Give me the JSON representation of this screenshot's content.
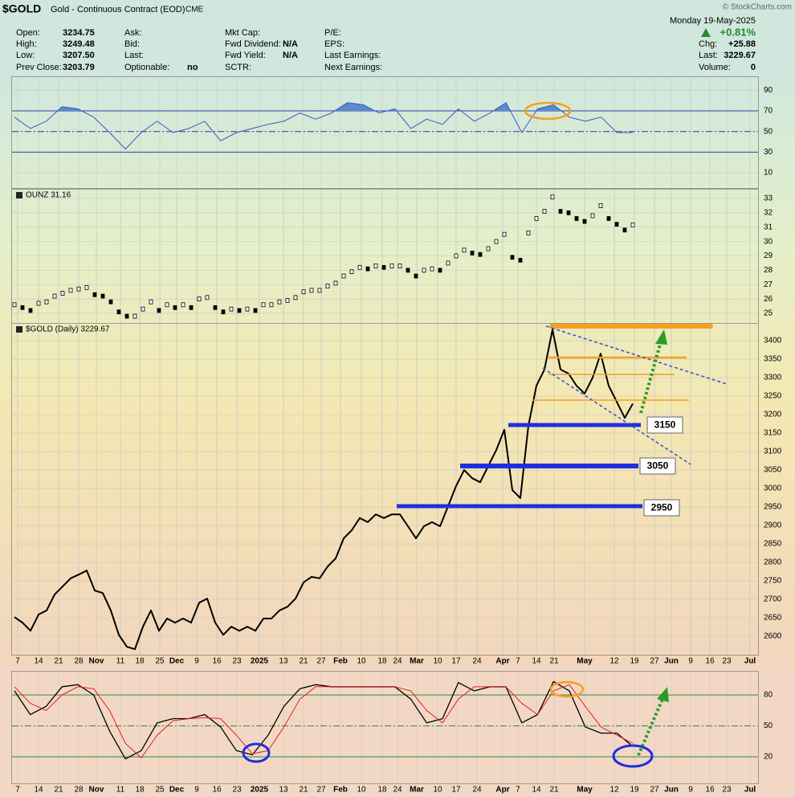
{
  "header": {
    "symbol": "$GOLD",
    "description": "Gold - Continuous Contract (EOD)",
    "exchange": "CME",
    "source": "© StockCharts.com",
    "date": "Monday 19-May-2025",
    "change_pct": "+0.81%",
    "info": [
      [
        {
          "label": "Open:",
          "value": "3234.75"
        },
        {
          "label": "High:",
          "value": "3249.48"
        },
        {
          "label": "Low:",
          "value": "3207.50"
        },
        {
          "label": "Prev Close:",
          "value": "3203.79"
        }
      ],
      [
        {
          "label": "Ask:"
        },
        {
          "label": "Bid:"
        },
        {
          "label": "Last:"
        },
        {
          "label": "Optionable:",
          "value": "no"
        }
      ],
      [
        {
          "label": "Mkt Cap:"
        },
        {
          "label": "Fwd Dividend:",
          "value": "N/A"
        },
        {
          "label": "Fwd Yield:",
          "value": "N/A"
        },
        {
          "label": "SCTR:"
        }
      ],
      [
        {
          "label": "P/E:"
        },
        {
          "label": "EPS:"
        },
        {
          "label": "Last Earnings:"
        },
        {
          "label": "Next Earnings:"
        }
      ]
    ],
    "quote": [
      {
        "label": "Chg:",
        "value": "+25.88"
      },
      {
        "label": "Last:",
        "value": "3229.67"
      },
      {
        "label": "Volume:",
        "value": "0"
      }
    ]
  },
  "xtick_labels": [
    "7",
    "14",
    "21",
    "28",
    "Nov",
    "11",
    "18",
    "25",
    "Dec",
    "9",
    "16",
    "23",
    "2025",
    "13",
    "21",
    "27",
    "Feb",
    "10",
    "18",
    "24",
    "Mar",
    "10",
    "17",
    "24",
    "Apr",
    "7",
    "14",
    "21",
    "May",
    "12",
    "19",
    "27",
    "Jun",
    "9",
    "16",
    "23",
    "Jul"
  ],
  "chart_data": [
    {
      "type": "line",
      "ylim": [
        -4,
        102
      ],
      "yticks": [
        10,
        30,
        50,
        70,
        90
      ],
      "grid": true,
      "hline_color": "#2b3fa8",
      "hlines": [
        {
          "value": 70,
          "style": "solid"
        },
        {
          "value": 30,
          "style": "solid"
        },
        {
          "value": 50,
          "style": "dashdot"
        }
      ],
      "series": [
        {
          "color": "#3a56c8",
          "fill_above": 70,
          "fill_color": "#5b8ccc",
          "values": [
            64,
            53,
            60,
            74,
            72,
            64,
            49,
            33,
            49,
            60,
            49,
            53,
            60,
            41,
            49,
            53,
            57,
            60,
            68,
            62,
            68,
            78,
            76,
            68,
            72,
            53,
            62,
            57,
            72,
            60,
            68,
            78,
            49,
            72,
            76,
            64,
            60,
            64,
            49,
            49
          ]
        }
      ]
    },
    {
      "type": "close-marks",
      "label": "OUNZ 31.16",
      "ylim": [
        24.33,
        33.67
      ],
      "yticks": [
        25,
        26,
        27,
        28,
        29,
        30,
        31,
        32,
        33
      ],
      "grid": true,
      "series": [
        {
          "color": "#000000",
          "values": [
            25.6,
            25.4,
            25.2,
            25.7,
            25.8,
            26.2,
            26.4,
            26.6,
            26.7,
            26.8,
            26.3,
            26.2,
            25.8,
            25.1,
            24.8,
            24.8,
            25.3,
            25.8,
            25.2,
            25.6,
            25.4,
            25.6,
            25.4,
            26.0,
            26.1,
            25.4,
            25.1,
            25.3,
            25.2,
            25.3,
            25.2,
            25.6,
            25.6,
            25.8,
            25.9,
            26.1,
            26.5,
            26.6,
            26.6,
            26.9,
            27.1,
            27.6,
            27.9,
            28.2,
            28.1,
            28.3,
            28.2,
            28.3,
            28.3,
            28.0,
            27.6,
            28.0,
            28.1,
            28.0,
            28.5,
            29.0,
            29.4,
            29.2,
            29.1,
            29.5,
            30.0,
            30.5,
            28.9,
            28.7,
            30.6,
            31.6,
            32.1,
            33.1,
            32.1,
            32.0,
            31.6,
            31.4,
            31.8,
            32.5,
            31.6,
            31.2,
            30.8,
            31.16
          ]
        }
      ]
    },
    {
      "type": "line",
      "label": "$GOLD (Daily) 3229.67",
      "ylim": [
        2550,
        3448
      ],
      "yticks": [
        2600,
        2650,
        2700,
        2750,
        2800,
        2850,
        2900,
        2950,
        3000,
        3050,
        3100,
        3150,
        3200,
        3250,
        3300,
        3350,
        3400
      ],
      "grid": true,
      "annotations": [
        3150,
        3050,
        2950
      ],
      "series": [
        {
          "color": "#000000",
          "width": 2,
          "values": [
            2652,
            2637,
            2615,
            2659,
            2670,
            2713,
            2735,
            2757,
            2767,
            2778,
            2724,
            2717,
            2670,
            2604,
            2572,
            2565,
            2626,
            2670,
            2615,
            2648,
            2637,
            2648,
            2637,
            2691,
            2702,
            2637,
            2604,
            2626,
            2615,
            2626,
            2615,
            2648,
            2648,
            2670,
            2680,
            2702,
            2746,
            2761,
            2757,
            2789,
            2811,
            2865,
            2887,
            2920,
            2909,
            2930,
            2920,
            2930,
            2930,
            2898,
            2865,
            2898,
            2909,
            2898,
            2952,
            3007,
            3050,
            3028,
            3017,
            3061,
            3104,
            3159,
            2996,
            2974,
            3170,
            3278,
            3322,
            3430,
            3322,
            3311,
            3278,
            3257,
            3300,
            3365,
            3278,
            3235,
            3191,
            3229.67
          ]
        }
      ]
    },
    {
      "type": "line",
      "ylim": [
        -5.7,
        103.4
      ],
      "yticks": [
        20,
        50,
        80
      ],
      "grid": true,
      "hline_color": "#2e8b3a",
      "hlines": [
        {
          "value": 80,
          "style": "solid"
        },
        {
          "value": 20,
          "style": "solid"
        },
        {
          "value": 50,
          "style": "dashdot"
        }
      ],
      "series": [
        {
          "color": "#000000",
          "width": 1.3,
          "values": [
            84,
            61,
            69,
            88,
            90,
            80,
            45,
            18,
            26,
            53,
            57,
            57,
            61,
            49,
            26,
            22,
            41,
            69,
            86,
            90,
            88,
            88,
            88,
            88,
            88,
            76,
            53,
            57,
            92,
            84,
            88,
            88,
            53,
            61,
            93,
            84,
            49,
            43,
            43,
            30
          ]
        },
        {
          "color": "#e02020",
          "width": 1,
          "values": [
            88,
            72,
            65,
            80,
            88,
            86,
            65,
            33,
            19,
            41,
            55,
            57,
            58,
            57,
            41,
            23,
            26,
            49,
            76,
            88,
            88,
            88,
            88,
            88,
            88,
            84,
            65,
            53,
            76,
            88,
            88,
            88,
            72,
            61,
            84,
            90,
            69,
            49,
            41,
            33
          ]
        }
      ]
    }
  ]
}
